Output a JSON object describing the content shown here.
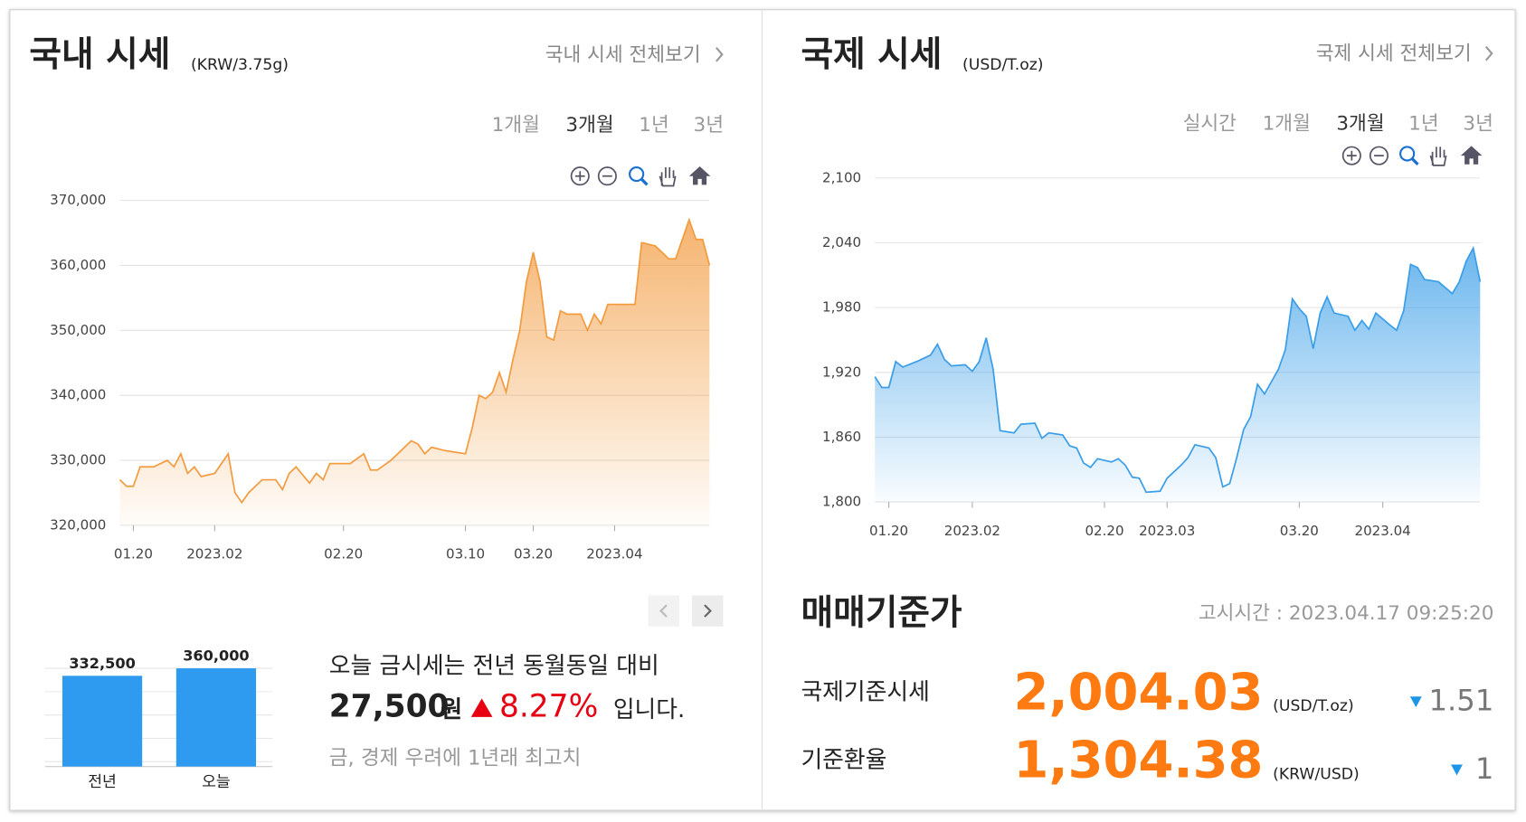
{
  "domestic": {
    "title": "국내 시세",
    "unit": "(KRW/3.75g)",
    "link": "국내 시세 전체보기",
    "periods": [
      "1개월",
      "3개월",
      "1년",
      "3년"
    ],
    "active_period": 1,
    "chart": {
      "type": "area",
      "color": "#f29b3f",
      "x": [
        -2,
        -1,
        0,
        1,
        3,
        5,
        6,
        7,
        8,
        9,
        10,
        12,
        14,
        15,
        16,
        17,
        19,
        21,
        22,
        23,
        24,
        26,
        27,
        28,
        29,
        32,
        34,
        35,
        36,
        38,
        39,
        41,
        42,
        43,
        44,
        46,
        49,
        50,
        51,
        52,
        53,
        54,
        55,
        56,
        57,
        58,
        59,
        60,
        61,
        62,
        63,
        64,
        66,
        67,
        68,
        69,
        70,
        72,
        74,
        75,
        77,
        79,
        80,
        82,
        83,
        84,
        85
      ],
      "values": [
        327000,
        326000,
        326000,
        329000,
        329000,
        330000,
        329000,
        331000,
        328000,
        329000,
        327500,
        328000,
        331000,
        325000,
        323500,
        325000,
        327000,
        327000,
        325500,
        328000,
        329000,
        326500,
        328000,
        327000,
        329500,
        329500,
        331000,
        328500,
        328500,
        330000,
        331000,
        333000,
        332500,
        331000,
        332000,
        331500,
        331000,
        335000,
        340000,
        339500,
        340500,
        343500,
        340500,
        345500,
        350000,
        357500,
        362000,
        357500,
        349000,
        348500,
        353000,
        352500,
        352500,
        350000,
        352500,
        351000,
        354000,
        354000,
        354000,
        363500,
        363000,
        361000,
        361000,
        367000,
        364000,
        364000,
        360000
      ],
      "xlim": [
        -2,
        85
      ],
      "xticks": [
        {
          "value": 0,
          "label": "01.20"
        },
        {
          "value": 12,
          "label": "2023.02"
        },
        {
          "value": 31,
          "label": "02.20"
        },
        {
          "value": 49,
          "label": "03.10"
        },
        {
          "value": 59,
          "label": "03.20"
        },
        {
          "value": 71,
          "label": "2023.04"
        }
      ],
      "ylim": [
        320000,
        370000
      ],
      "yticks": [
        {
          "value": 320000,
          "label": "320,000"
        },
        {
          "value": 330000,
          "label": "330,000"
        },
        {
          "value": 340000,
          "label": "340,000"
        },
        {
          "value": 350000,
          "label": "350,000"
        },
        {
          "value": 360000,
          "label": "360,000"
        },
        {
          "value": 370000,
          "label": "370,000"
        }
      ],
      "grid": true
    }
  },
  "comparison": {
    "chart": {
      "type": "bar",
      "color": "#2f9bf0",
      "categories": [
        "전년",
        "오늘"
      ],
      "values": [
        332500,
        360000
      ],
      "value_labels": [
        "332,500",
        "360,000"
      ],
      "ylim": [
        0,
        360000
      ]
    },
    "text": {
      "line1": "오늘 금시세는 전년 동월동일 대비",
      "amount": "27,500",
      "amount_unit": "원",
      "percent": "8.27%",
      "ending": "입니다.",
      "headline": "금, 경제 우려에 1년래 최고치"
    }
  },
  "international": {
    "title": "국제 시세",
    "unit": "(USD/T.oz)",
    "link": "국제 시세 전체보기",
    "periods": [
      "실시간",
      "1개월",
      "3개월",
      "1년",
      "3년"
    ],
    "active_period": 2,
    "chart": {
      "type": "area",
      "color": "#3a9ee8",
      "x": [
        -2,
        -1,
        0,
        1,
        2,
        4,
        6,
        7,
        8,
        9,
        11,
        12,
        13,
        14,
        15,
        16,
        18,
        19,
        21,
        22,
        23,
        25,
        26,
        27,
        28,
        29,
        30,
        32,
        33,
        34,
        35,
        36,
        37,
        39,
        40,
        42,
        43,
        44,
        46,
        47,
        48,
        49,
        50,
        51,
        52,
        53,
        54,
        56,
        57,
        58,
        59,
        60,
        61,
        62,
        63,
        64,
        66,
        67,
        68,
        69,
        70,
        72,
        73,
        74,
        75,
        76,
        77,
        79,
        81,
        82,
        83,
        84,
        85
      ],
      "values": [
        1916,
        1906,
        1906,
        1930,
        1925,
        1930,
        1936,
        1946,
        1932,
        1926,
        1927,
        1921,
        1930,
        1952,
        1923,
        1866,
        1864,
        1872,
        1873,
        1859,
        1864,
        1862,
        1852,
        1850,
        1836,
        1832,
        1840,
        1837,
        1840,
        1834,
        1823,
        1822,
        1809,
        1810,
        1822,
        1834,
        1841,
        1853,
        1850,
        1841,
        1814,
        1817,
        1841,
        1867,
        1879,
        1909,
        1900,
        1923,
        1941,
        1988,
        1979,
        1972,
        1942,
        1975,
        1990,
        1975,
        1972,
        1959,
        1968,
        1960,
        1975,
        1964,
        1959,
        1977,
        2020,
        2017,
        2006,
        2004,
        1993,
        2004,
        2023,
        2035,
        2004
      ],
      "xlim": [
        -2,
        85
      ],
      "xticks": [
        {
          "value": 0,
          "label": "01.20"
        },
        {
          "value": 12,
          "label": "2023.02"
        },
        {
          "value": 31,
          "label": "02.20"
        },
        {
          "value": 40,
          "label": "2023.03"
        },
        {
          "value": 59,
          "label": "03.20"
        },
        {
          "value": 71,
          "label": "2023.04"
        }
      ],
      "ylim": [
        1800,
        2100
      ],
      "yticks": [
        {
          "value": 1800,
          "label": "1,800"
        },
        {
          "value": 1860,
          "label": "1,860"
        },
        {
          "value": 1920,
          "label": "1,920"
        },
        {
          "value": 1980,
          "label": "1,980"
        },
        {
          "value": 2040,
          "label": "2,040"
        },
        {
          "value": 2100,
          "label": "2,100"
        }
      ],
      "grid": true
    }
  },
  "trading_basis": {
    "title": "매매기준가",
    "notice": "고시시간 : 2023.04.17 09:25:20",
    "rows": [
      {
        "label": "국제기준시세",
        "value": "2,004.03",
        "unit": "(USD/T.oz)",
        "change": "1.51"
      },
      {
        "label": "기준환율",
        "value": "1,304.38",
        "unit": "(KRW/USD)",
        "change": "1"
      }
    ]
  }
}
